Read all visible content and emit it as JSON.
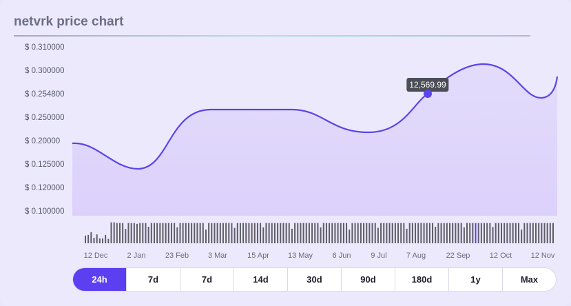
{
  "title": "netvrk price chart",
  "colors": {
    "accent": "#5b3ff0",
    "line": "#5b45e6",
    "fill": "#dcd1fb",
    "tooltip_bg": "#4b4d57"
  },
  "tooltip": {
    "value": "12,569.99"
  },
  "ranges": {
    "active_index": 0,
    "items": [
      "24h",
      "7d",
      "7d",
      "14d",
      "30d",
      "90d",
      "180d",
      "1y",
      "Max"
    ]
  },
  "chart_data": {
    "type": "area",
    "title": "netvrk price chart",
    "y_tick_labels": [
      "$ 0.310000",
      "$ 0.300000",
      "$ 0.254800",
      "$ 0.250000",
      "$ 0.20000",
      "$ 0.125000",
      "$ 0.120000",
      "$ 0.100000"
    ],
    "x_tick_labels": [
      "12 Dec",
      "2 Jan",
      "23 Feb",
      "3 Mar",
      "15 Apr",
      "13 May",
      "6 Jun",
      "9 Jul",
      "7 Aug",
      "22 Sep",
      "12 Oct",
      "12 Nov"
    ],
    "series": [
      {
        "points": [
          [
            "12 Dec",
            0.2
          ],
          [
            "2 Jan",
            0.125
          ],
          [
            "23 Feb",
            0.245
          ],
          [
            "3 Mar",
            0.25
          ],
          [
            "15 Apr",
            0.25
          ],
          [
            "13 May",
            0.25
          ],
          [
            "6 Jun",
            0.21
          ],
          [
            "9 Jul",
            0.21
          ],
          [
            "7 Aug",
            0.255
          ],
          [
            "22 Sep",
            0.3
          ],
          [
            "12 Oct",
            0.295
          ],
          [
            "12 Nov",
            0.254
          ],
          [
            "12 Nov",
            0.28
          ]
        ]
      }
    ],
    "volume_bars": {
      "heights": [
        0.35,
        0.38,
        0.5,
        0.25,
        0.4,
        0.22,
        0.22,
        0.38,
        0.2,
        0.95,
        0.95,
        0.92,
        0.92,
        0.92,
        0.65,
        0.92,
        0.92,
        0.92,
        0.88,
        0.92,
        0.92,
        0.92,
        0.75,
        0.92,
        0.92,
        0.92,
        0.92,
        0.92,
        0.92,
        0.92,
        0.92,
        0.92,
        0.72,
        0.92,
        0.92,
        0.92,
        0.92,
        0.92,
        0.92,
        0.92,
        0.92,
        0.92,
        0.62,
        0.92,
        0.92,
        0.92,
        0.92,
        0.92,
        0.92,
        0.92,
        0.92,
        0.92,
        0.7,
        0.92,
        0.92,
        0.92,
        0.92,
        0.92,
        0.92,
        0.92,
        0.92,
        0.92,
        0.72,
        0.92,
        0.92,
        0.92,
        0.92,
        0.92,
        0.92,
        0.92,
        0.92,
        0.92,
        0.66,
        0.92,
        0.92,
        0.92,
        0.92,
        0.92,
        0.92,
        0.92,
        0.92,
        0.92,
        0.72,
        0.92,
        0.92,
        0.92,
        0.92,
        0.92,
        0.92,
        0.92,
        0.92,
        0.92,
        0.62,
        0.92,
        0.92,
        0.92,
        0.92,
        0.92,
        0.92,
        0.92,
        0.92,
        0.92,
        0.7,
        0.92,
        0.92,
        0.92,
        0.92,
        0.92,
        0.92,
        0.92,
        0.92,
        0.92,
        0.66,
        0.92,
        0.92,
        0.92,
        0.92,
        0.92,
        0.92,
        0.92,
        0.92,
        0.92,
        0.75,
        0.92,
        0.92,
        0.92,
        0.92,
        0.92,
        0.92,
        0.92,
        0.92,
        0.92,
        0.72,
        0.92,
        0.92,
        0.92,
        0.92,
        0.92,
        0.92,
        0.92,
        0.92,
        0.92,
        0.74,
        0.92,
        0.92,
        0.92,
        0.92,
        0.92,
        0.92,
        0.92,
        0.92,
        0.92,
        0.62,
        0.92,
        0.92,
        0.92,
        0.92,
        0.92,
        0.92,
        0.92,
        0.92,
        0.92,
        0.92,
        0.92
      ],
      "highlight_index": 136
    }
  }
}
